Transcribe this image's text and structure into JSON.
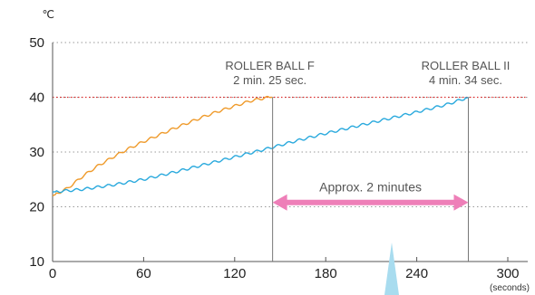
{
  "chart_data": {
    "type": "line",
    "y_unit": "℃",
    "x_unit": "(seconds)",
    "xlim": [
      0,
      300
    ],
    "ylim": [
      10,
      50
    ],
    "x_ticks": [
      0,
      60,
      120,
      180,
      240,
      300
    ],
    "y_ticks": [
      10,
      20,
      30,
      40,
      50
    ],
    "grid": "horizontal dotted",
    "reference_line": {
      "y": 40,
      "color": "#e03030"
    },
    "series": [
      {
        "name": "ROLLER BALL F",
        "color": "#ef9a2a",
        "x": [
          0,
          10,
          20,
          30,
          40,
          50,
          60,
          70,
          80,
          90,
          100,
          110,
          120,
          130,
          140,
          145
        ],
        "y": [
          22,
          23.4,
          25.6,
          27.5,
          29.1,
          30.6,
          31.9,
          33.1,
          34.3,
          35.4,
          36.5,
          37.5,
          38.4,
          39.3,
          39.9,
          40
        ]
      },
      {
        "name": "ROLLER BALL II",
        "color": "#29a9dd",
        "x": [
          0,
          20,
          40,
          60,
          80,
          100,
          120,
          140,
          160,
          180,
          200,
          220,
          240,
          260,
          274
        ],
        "y": [
          22.7,
          23.2,
          24.0,
          25.0,
          26.3,
          27.7,
          29.1,
          30.5,
          32.0,
          33.4,
          34.7,
          36.0,
          37.3,
          38.7,
          40
        ]
      }
    ],
    "annotations": [
      {
        "series": "ROLLER BALL F",
        "x": 145,
        "line1": "ROLLER BALL F",
        "line2": "2 min. 25 sec."
      },
      {
        "series": "ROLLER BALL II",
        "x": 274,
        "line1": "ROLLER BALL II",
        "line2": "4 min. 34 sec."
      }
    ],
    "bracket": {
      "x_from": 145,
      "x_to": 274,
      "y": 20.8,
      "label": "Approx. 2 minutes",
      "color": "#ee7fb8"
    }
  }
}
